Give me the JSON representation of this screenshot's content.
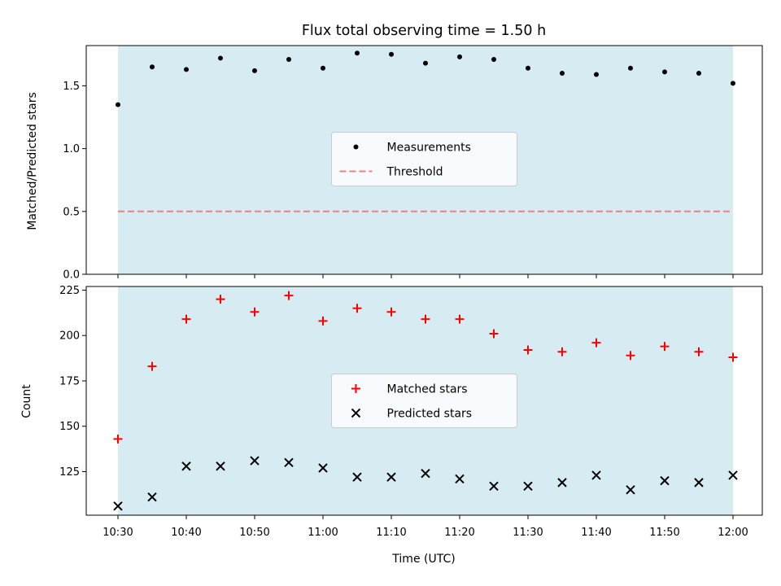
{
  "chart_data": [
    {
      "type": "scatter",
      "title": "Flux total observing time = 1.50 h",
      "xlabel": "",
      "ylabel": "Matched/Predicted stars",
      "ylim": [
        0.0,
        1.82
      ],
      "yticks": [
        "0.0",
        "0.5",
        "1.0",
        "1.5"
      ],
      "x": [
        "10:30",
        "10:35",
        "10:40",
        "10:45",
        "10:50",
        "10:55",
        "11:00",
        "11:05",
        "11:10",
        "11:15",
        "11:20",
        "11:25",
        "11:30",
        "11:35",
        "11:40",
        "11:45",
        "11:50",
        "11:55",
        "12:00"
      ],
      "series": [
        {
          "name": "Measurements",
          "marker": "dot",
          "color": "#000000",
          "values": [
            1.35,
            1.65,
            1.63,
            1.72,
            1.62,
            1.71,
            1.64,
            1.76,
            1.75,
            1.68,
            1.73,
            1.71,
            1.64,
            1.6,
            1.59,
            1.64,
            1.61,
            1.6,
            1.52
          ]
        },
        {
          "name": "Threshold",
          "style": "dashed-line",
          "color": "#f08080",
          "value": 0.5
        }
      ],
      "shaded_region": {
        "from": "10:30",
        "to": "12:00",
        "color": "#add8e6"
      },
      "legend_position": "center",
      "grid": false
    },
    {
      "type": "scatter",
      "xlabel": "Time (UTC)",
      "ylabel": "Count",
      "ylim": [
        101,
        227
      ],
      "yticks": [
        "125",
        "150",
        "175",
        "200",
        "225"
      ],
      "x": [
        "10:30",
        "10:35",
        "10:40",
        "10:45",
        "10:50",
        "10:55",
        "11:00",
        "11:05",
        "11:10",
        "11:15",
        "11:20",
        "11:25",
        "11:30",
        "11:35",
        "11:40",
        "11:45",
        "11:50",
        "11:55",
        "12:00"
      ],
      "xticks": [
        "10:30",
        "10:40",
        "10:50",
        "11:00",
        "11:10",
        "11:20",
        "11:30",
        "11:40",
        "11:50",
        "12:00"
      ],
      "series": [
        {
          "name": "Matched stars",
          "marker": "plus",
          "color": "#ff0000",
          "values": [
            143,
            183,
            209,
            220,
            213,
            222,
            208,
            215,
            213,
            209,
            209,
            201,
            192,
            191,
            196,
            189,
            194,
            191,
            188
          ]
        },
        {
          "name": "Predicted stars",
          "marker": "x",
          "color": "#000000",
          "values": [
            106,
            111,
            128,
            128,
            131,
            130,
            127,
            122,
            122,
            124,
            121,
            117,
            117,
            119,
            123,
            115,
            120,
            119,
            123
          ]
        }
      ],
      "shaded_region": {
        "from": "10:30",
        "to": "12:00",
        "color": "#add8e6"
      },
      "legend_position": "center",
      "grid": false
    }
  ]
}
